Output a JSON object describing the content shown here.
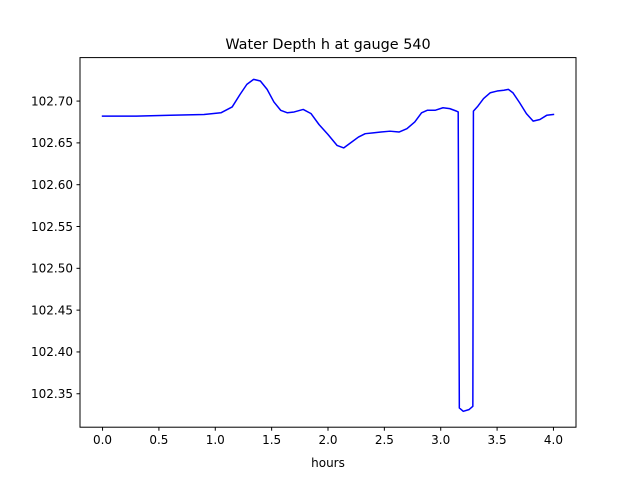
{
  "chart_data": {
    "type": "line",
    "title": "Water Depth h at gauge 540",
    "xlabel": "hours",
    "ylabel": "",
    "xlim": [
      -0.2,
      4.2
    ],
    "ylim": [
      102.31,
      102.752
    ],
    "x_ticks": [
      0.0,
      0.5,
      1.0,
      1.5,
      2.0,
      2.5,
      3.0,
      3.5,
      4.0
    ],
    "x_tick_labels": [
      "0.0",
      "0.5",
      "1.0",
      "1.5",
      "2.0",
      "2.5",
      "3.0",
      "3.5",
      "4.0"
    ],
    "y_ticks": [
      102.35,
      102.4,
      102.45,
      102.5,
      102.55,
      102.6,
      102.65,
      102.7
    ],
    "y_tick_labels": [
      "102.35",
      "102.40",
      "102.45",
      "102.50",
      "102.55",
      "102.60",
      "102.65",
      "102.70"
    ],
    "grid": false,
    "series": [
      {
        "color": "#0000ff",
        "points": [
          [
            0.0,
            102.682
          ],
          [
            0.3,
            102.682
          ],
          [
            0.6,
            102.683
          ],
          [
            0.9,
            102.684
          ],
          [
            1.05,
            102.686
          ],
          [
            1.15,
            102.693
          ],
          [
            1.22,
            102.708
          ],
          [
            1.28,
            102.72
          ],
          [
            1.34,
            102.726
          ],
          [
            1.4,
            102.724
          ],
          [
            1.46,
            102.714
          ],
          [
            1.52,
            102.699
          ],
          [
            1.58,
            102.689
          ],
          [
            1.64,
            102.686
          ],
          [
            1.7,
            102.687
          ],
          [
            1.78,
            102.69
          ],
          [
            1.85,
            102.685
          ],
          [
            1.92,
            102.672
          ],
          [
            2.0,
            102.66
          ],
          [
            2.08,
            102.647
          ],
          [
            2.14,
            102.644
          ],
          [
            2.2,
            102.65
          ],
          [
            2.27,
            102.657
          ],
          [
            2.33,
            102.661
          ],
          [
            2.4,
            102.662
          ],
          [
            2.47,
            102.663
          ],
          [
            2.55,
            102.664
          ],
          [
            2.63,
            102.663
          ],
          [
            2.7,
            102.667
          ],
          [
            2.77,
            102.675
          ],
          [
            2.83,
            102.686
          ],
          [
            2.88,
            102.689
          ],
          [
            2.95,
            102.689
          ],
          [
            3.02,
            102.692
          ],
          [
            3.08,
            102.691
          ],
          [
            3.14,
            102.688
          ],
          [
            3.155,
            102.687
          ],
          [
            3.165,
            102.333
          ],
          [
            3.2,
            102.329
          ],
          [
            3.25,
            102.331
          ],
          [
            3.285,
            102.335
          ],
          [
            3.29,
            102.688
          ],
          [
            3.33,
            102.694
          ],
          [
            3.38,
            102.703
          ],
          [
            3.44,
            102.71
          ],
          [
            3.5,
            102.712
          ],
          [
            3.56,
            102.713
          ],
          [
            3.6,
            102.714
          ],
          [
            3.64,
            102.71
          ],
          [
            3.7,
            102.698
          ],
          [
            3.76,
            102.685
          ],
          [
            3.82,
            102.676
          ],
          [
            3.88,
            102.678
          ],
          [
            3.94,
            102.683
          ],
          [
            4.0,
            102.684
          ]
        ]
      }
    ]
  }
}
